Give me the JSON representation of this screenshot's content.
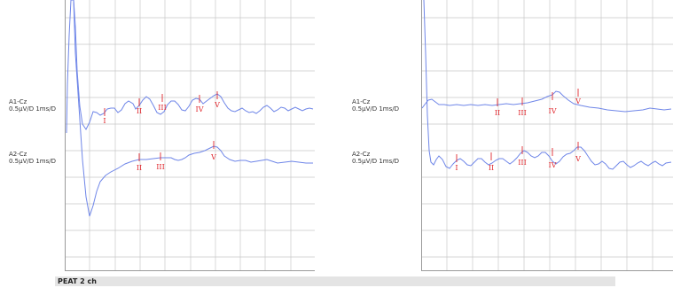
{
  "panels": [
    {
      "channels": [
        {
          "name": "A1-Cz",
          "scale": "0.5µV/D 1ms/D",
          "markers": [
            {
              "label": "I"
            },
            {
              "label": "II"
            },
            {
              "label": "III"
            },
            {
              "label": "IV"
            },
            {
              "label": "V"
            }
          ]
        },
        {
          "name": "A2-Cz",
          "scale": "0.5µV/D 1ms/D",
          "markers": [
            {
              "label": "II"
            },
            {
              "label": "III"
            },
            {
              "label": "V"
            }
          ]
        }
      ]
    },
    {
      "channels": [
        {
          "name": "A1-Cz",
          "scale": "0.5µV/D 1ms/D",
          "markers": [
            {
              "label": "II"
            },
            {
              "label": "III"
            },
            {
              "label": "IV"
            },
            {
              "label": "V"
            }
          ]
        },
        {
          "name": "A2-Cz",
          "scale": "0.5µV/D 1ms/D",
          "markers": [
            {
              "label": "I"
            },
            {
              "label": "II"
            },
            {
              "label": "III"
            },
            {
              "label": "IV"
            },
            {
              "label": "V"
            }
          ]
        }
      ]
    }
  ],
  "footer": {
    "title": "PEAT 2 ch"
  },
  "colors": {
    "trace": "#6f86e8",
    "marker": "#e0282e",
    "grid": "#c8c8c8",
    "axis": "#9a9a9a"
  }
}
